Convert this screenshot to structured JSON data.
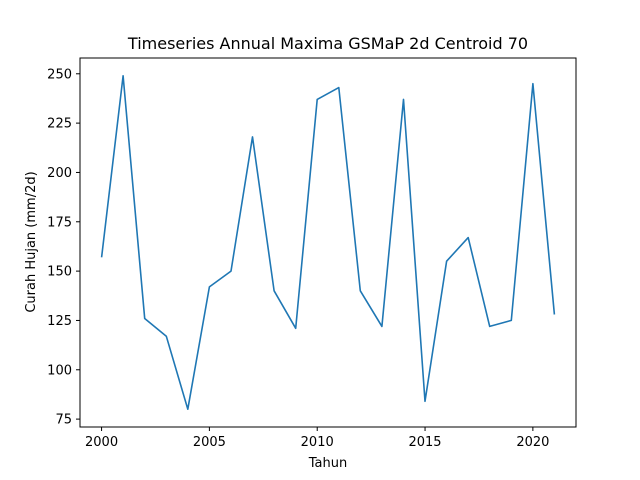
{
  "chart_data": {
    "type": "line",
    "title": "Timeseries Annual Maxima GSMaP 2d Centroid 70",
    "xlabel": "Tahun",
    "ylabel": "Curah Hujan (mm/2d)",
    "xlim": [
      1999,
      2022
    ],
    "ylim": [
      71,
      258
    ],
    "xticks": [
      2000,
      2005,
      2010,
      2015,
      2020
    ],
    "yticks": [
      75,
      100,
      125,
      150,
      175,
      200,
      225,
      250
    ],
    "grid": false,
    "line_color": "#1f77b4",
    "series": [
      {
        "x": [
          2000,
          2001,
          2002,
          2003,
          2004,
          2005,
          2006,
          2007,
          2008,
          2009,
          2010,
          2011,
          2012,
          2013,
          2014,
          2015,
          2016,
          2017,
          2018,
          2019,
          2020,
          2021
        ],
        "values": [
          157,
          249,
          126,
          117,
          80,
          142,
          150,
          218,
          140,
          121,
          237,
          243,
          140,
          122,
          237,
          84,
          155,
          167,
          122,
          125,
          245,
          128
        ]
      }
    ]
  }
}
